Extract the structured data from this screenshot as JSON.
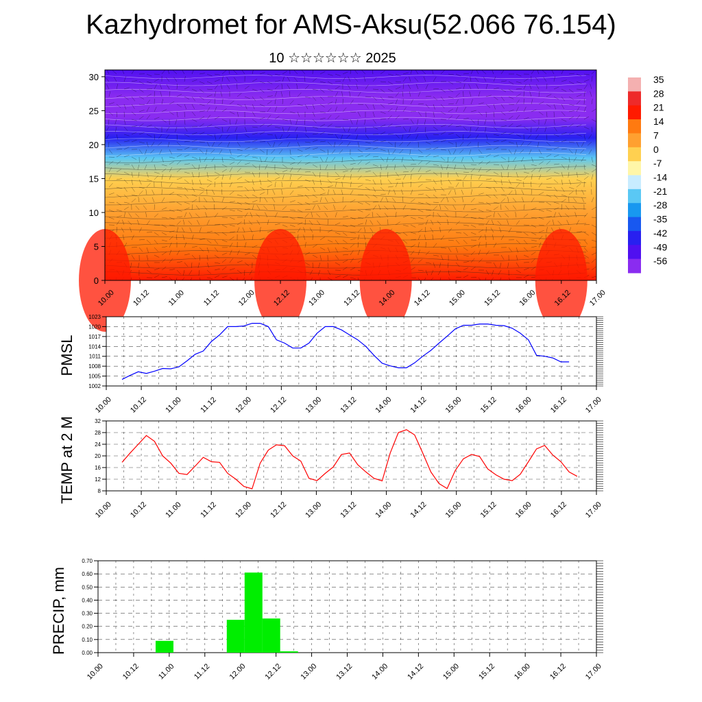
{
  "header": {
    "title": "Kazhydromet for AMS-Aksu(52.066 76.154)",
    "subtitle": "10 ☆☆☆☆☆☆ 2025"
  },
  "colors": {
    "pmsl_line": "#0000ff",
    "temp_line": "#ff0000",
    "precip_bar": "#00ee00",
    "grid": "#000000"
  },
  "chart_data": [
    {
      "id": "cross-section",
      "type": "heatmap",
      "title": "",
      "ylabel": "",
      "xlabel": "",
      "x_ticks": [
        "10.00",
        "10.12",
        "11.00",
        "11.12",
        "12.00",
        "12.12",
        "13.00",
        "13.12",
        "14.00",
        "14.12",
        "15.00",
        "15.12",
        "16.00",
        "16.12",
        "17.00"
      ],
      "y_ticks": [
        "0",
        "5",
        "10",
        "15",
        "20",
        "25",
        "30"
      ],
      "ylim": [
        0,
        31
      ],
      "colorbar": {
        "labels": [
          "35",
          "28",
          "21",
          "14",
          "7",
          "0",
          "-7",
          "-14",
          "-21",
          "-28",
          "-35",
          "-42",
          "-49",
          "-56"
        ],
        "colors": [
          "#f4b0b0",
          "#ee2a2a",
          "#ff1a00",
          "#ff7a10",
          "#ffa030",
          "#ffd050",
          "#fff6a8",
          "#c8ecff",
          "#5ac8f4",
          "#1898f0",
          "#1858f0",
          "#2820f0",
          "#5010f0",
          "#8a2cf0"
        ]
      },
      "temperature_levels": [
        {
          "height": 0,
          "value": 26
        },
        {
          "height": 5,
          "value": 20
        },
        {
          "height": 10,
          "value": 12
        },
        {
          "height": 15,
          "value": 0
        },
        {
          "height": 18,
          "value": -20
        },
        {
          "height": 21,
          "value": -42
        },
        {
          "height": 24,
          "value": -56
        },
        {
          "height": 27,
          "value": -52
        },
        {
          "height": 31,
          "value": -48
        }
      ],
      "warm_cores_x": [
        "10.00",
        "12.12",
        "14.00",
        "16.12"
      ]
    },
    {
      "id": "pmsl",
      "type": "line",
      "ylabel": "PMSL",
      "xlabel": "",
      "ylim": [
        1002,
        1023
      ],
      "y_ticks": [
        1002,
        1005,
        1008,
        1011,
        1014,
        1017,
        1020,
        1023
      ],
      "x_ticks": [
        "10.00",
        "10.12",
        "11.00",
        "11.12",
        "12.00",
        "12.12",
        "13.00",
        "13.12",
        "14.00",
        "14.12",
        "15.00",
        "15.12",
        "16.00",
        "16.12",
        "17.00"
      ],
      "series": [
        {
          "values": [
            1004,
            1005.2,
            1006.3,
            1005.8,
            1006.5,
            1007.3,
            1007.2,
            1007.8,
            1009.6,
            1011.6,
            1012.6,
            1015.5,
            1017.5,
            1020,
            1020,
            1020.2,
            1021,
            1021,
            1020,
            1016,
            1015,
            1013.5,
            1013.5,
            1015,
            1018,
            1020,
            1020,
            1019,
            1017.5,
            1016,
            1014,
            1011.3,
            1008.9,
            1008.1,
            1007.5,
            1007.5,
            1009,
            1011,
            1012.8,
            1015,
            1017.1,
            1019.3,
            1020.4,
            1020.4,
            1020.8,
            1020.8,
            1020.4,
            1020.3,
            1019.5,
            1018,
            1016,
            1011.3,
            1011,
            1010.5,
            1009.3,
            1009.3
          ]
        }
      ]
    },
    {
      "id": "temp",
      "type": "line",
      "ylabel": "TEMP at 2 M",
      "xlabel": "",
      "ylim": [
        8,
        32
      ],
      "y_ticks": [
        8,
        12,
        16,
        20,
        24,
        28,
        32
      ],
      "x_ticks": [
        "10.00",
        "10.12",
        "11.00",
        "11.12",
        "12.00",
        "12.12",
        "13.00",
        "13.12",
        "14.00",
        "14.12",
        "15.00",
        "15.12",
        "16.00",
        "16.12",
        "17.00"
      ],
      "series": [
        {
          "values": [
            17.8,
            21,
            24,
            27,
            25,
            20,
            17.5,
            14,
            13.6,
            16.5,
            19.5,
            18,
            17.8,
            14,
            12,
            9.5,
            8.7,
            17.5,
            22,
            23.8,
            23.5,
            20,
            18.2,
            12.3,
            11.5,
            14,
            16.2,
            20.5,
            21,
            17,
            14.5,
            12.3,
            11.4,
            21,
            28,
            29,
            27.2,
            21,
            14.5,
            10.5,
            8.8,
            15,
            19,
            20.5,
            19.8,
            15.5,
            13.5,
            12,
            11.5,
            13.7,
            18,
            22.4,
            23.6,
            20.3,
            18,
            14.5,
            13
          ]
        }
      ]
    },
    {
      "id": "precip",
      "type": "bar",
      "ylabel": "PRECIP, mm",
      "xlabel": "",
      "ylim": [
        0,
        0.7
      ],
      "y_ticks": [
        "0.00",
        "0.10",
        "0.20",
        "0.30",
        "0.40",
        "0.50",
        "0.60",
        "0.70"
      ],
      "x_ticks": [
        "10.00",
        "10.12",
        "11.00",
        "11.12",
        "12.00",
        "12.12",
        "13.00",
        "13.12",
        "14.00",
        "14.12",
        "15.00",
        "15.12",
        "16.00",
        "16.12",
        "17.00"
      ],
      "bars": [
        {
          "x": 9,
          "value": 0.09
        },
        {
          "x": 21,
          "value": 0.25
        },
        {
          "x": 24,
          "value": 0.61
        },
        {
          "x": 27,
          "value": 0.26
        },
        {
          "x": 30,
          "value": 0.01
        }
      ]
    }
  ]
}
